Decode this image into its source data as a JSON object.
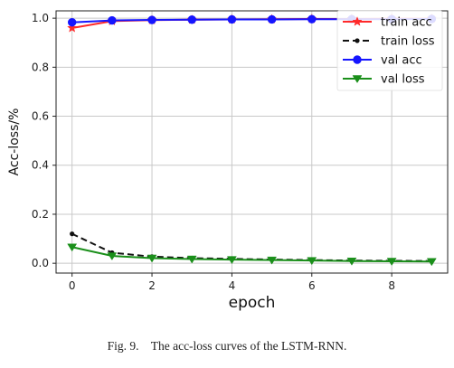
{
  "chart_data": {
    "type": "line",
    "xlabel": "epoch",
    "ylabel": "Acc-loss/%",
    "xlim": [
      -0.4,
      9.4
    ],
    "ylim": [
      -0.04,
      1.03
    ],
    "x_ticks": [
      0,
      2,
      4,
      6,
      8
    ],
    "y_ticks": [
      0.0,
      0.2,
      0.4,
      0.6,
      0.8,
      1.0
    ],
    "x_tick_labels": [
      "0",
      "2",
      "4",
      "6",
      "8"
    ],
    "y_tick_labels": [
      "0.0",
      "0.2",
      "0.4",
      "0.6",
      "0.8",
      "1.0"
    ],
    "grid": true,
    "legend_position": "top-right",
    "x": [
      0,
      1,
      2,
      3,
      4,
      5,
      6,
      7,
      8,
      9
    ],
    "series": [
      {
        "name": "train acc",
        "color": "#ff2a2a",
        "line_style": "solid",
        "marker": "star",
        "values": [
          0.96,
          0.988,
          0.992,
          0.994,
          0.995,
          0.996,
          0.997,
          0.997,
          0.998,
          0.998
        ]
      },
      {
        "name": "train loss",
        "color": "#111111",
        "line_style": "dashed",
        "marker": "dot",
        "values": [
          0.12,
          0.043,
          0.027,
          0.021,
          0.018,
          0.015,
          0.013,
          0.011,
          0.01,
          0.009
        ]
      },
      {
        "name": "val acc",
        "color": "#1515ff",
        "line_style": "solid",
        "marker": "circle",
        "values": [
          0.983,
          0.991,
          0.993,
          0.994,
          0.995,
          0.995,
          0.996,
          0.996,
          0.996,
          0.997
        ]
      },
      {
        "name": "val loss",
        "color": "#1a8f1a",
        "line_style": "solid",
        "marker": "triangle-down",
        "values": [
          0.066,
          0.03,
          0.021,
          0.017,
          0.015,
          0.013,
          0.011,
          0.009,
          0.008,
          0.007
        ]
      }
    ]
  },
  "caption": "Fig. 9.    The acc-loss curves of the LSTM-RNN."
}
